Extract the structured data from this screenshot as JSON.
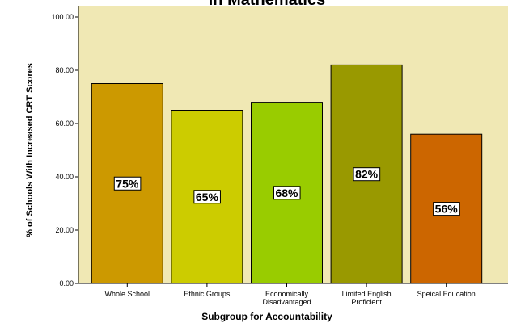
{
  "chart_data": {
    "type": "bar",
    "title": "in Mathematics",
    "x_label": "Subgroup for Accountability",
    "y_label": "% of Schools With Increased CRT Scores",
    "categories": [
      "Whole School",
      "Ethnic Groups",
      "Economically\nDisadvantaged",
      "Limited English\nProficient",
      "Speical Education"
    ],
    "values": [
      75,
      65,
      68,
      82,
      56
    ],
    "value_labels": [
      "75%",
      "65%",
      "68%",
      "82%",
      "56%"
    ],
    "colors": [
      "#cc9900",
      "#cccc00",
      "#99cc00",
      "#999900",
      "#cc6600"
    ],
    "ylim": [
      0,
      100
    ],
    "yticks": [
      {
        "value": 0,
        "label": "0.00"
      },
      {
        "value": 20,
        "label": "20.00"
      },
      {
        "value": 40,
        "label": "40.00"
      },
      {
        "value": 60,
        "label": "60.00"
      },
      {
        "value": 80,
        "label": "80.00"
      },
      {
        "value": 100,
        "label": "100.00"
      }
    ],
    "grid": false
  }
}
